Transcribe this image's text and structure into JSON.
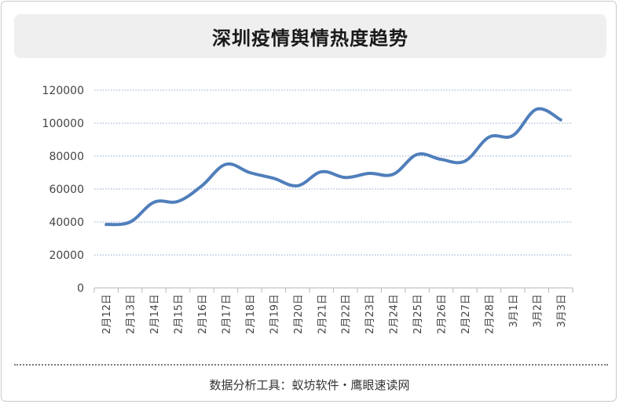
{
  "chart_data": {
    "type": "line",
    "title": "深圳疫情舆情热度趋势",
    "categories": [
      "2月12日",
      "2月13日",
      "2月14日",
      "2月15日",
      "2月16日",
      "2月17日",
      "2月18日",
      "2月19日",
      "2月20日",
      "2月21日",
      "2月22日",
      "2月23日",
      "2月24日",
      "2月25日",
      "2月26日",
      "2月27日",
      "2月28日",
      "3月1日",
      "3月2日",
      "3月3日"
    ],
    "series": [
      {
        "values": [
          38500,
          40000,
          52000,
          52500,
          62000,
          75000,
          70000,
          66500,
          62000,
          70500,
          67000,
          69500,
          69000,
          81000,
          78000,
          77000,
          91500,
          92500,
          108500,
          102000
        ]
      }
    ],
    "ylim": [
      0,
      120000
    ],
    "yticks": [
      0,
      20000,
      40000,
      60000,
      80000,
      100000,
      120000
    ],
    "ytick_labels": [
      "0",
      "20000",
      "40000",
      "60000",
      "80000",
      "100000",
      "120000"
    ],
    "grid": true,
    "line_color": "#4f7ebb"
  },
  "footer": {
    "text": "数据分析工具：蚁坊软件・鹰眼速读网"
  }
}
